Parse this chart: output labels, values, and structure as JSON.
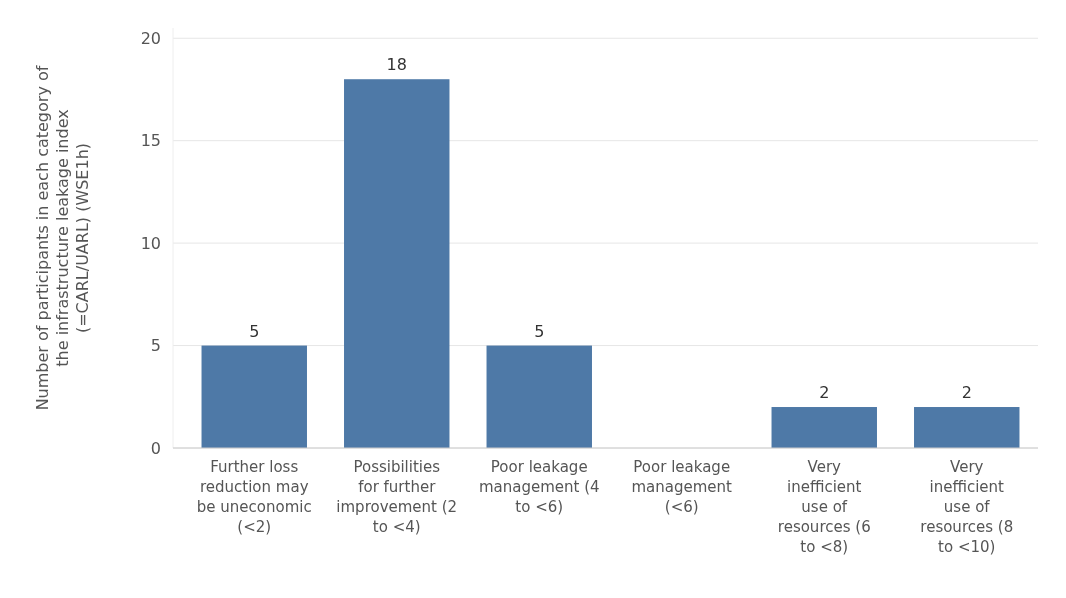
{
  "chart_data": {
    "type": "bar",
    "ylabel": "Number of participants in each category of the infrastructure leakage index (=CARL/UARL) (WSE1h)",
    "categories": [
      "Further loss reduction may be uneconomic (<2)",
      "Possibilities for further improvement (2 to <4)",
      "Poor leakage management (4 to <6)",
      "Poor leakage management (<6)",
      "Very inefficient use of resources (6 to <8)",
      "Very inefficient use of resources (8 to <10)"
    ],
    "values": [
      5,
      18,
      5,
      null,
      2,
      2
    ],
    "color": "#4e79a7",
    "ylim": [
      0,
      20.5
    ],
    "yticks": [
      0,
      5,
      10,
      15,
      20
    ],
    "grid": "y",
    "data_labels": true
  }
}
